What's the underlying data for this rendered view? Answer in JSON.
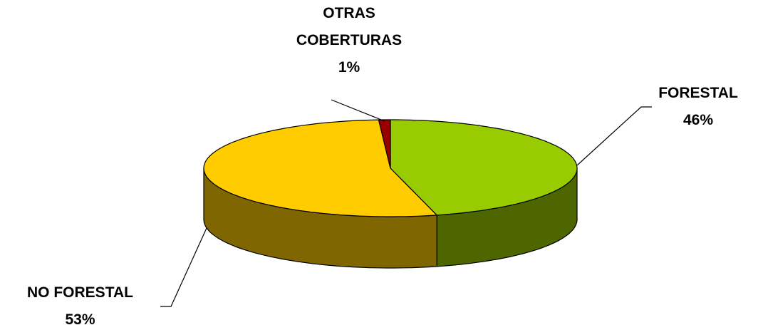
{
  "chart_data": {
    "type": "pie",
    "categories": [
      "FORESTAL",
      "NO FORESTAL",
      "OTRAS COBERTURAS"
    ],
    "values": [
      46,
      53,
      1
    ],
    "value_labels": [
      "46%",
      "53%",
      "1%"
    ],
    "colors": [
      "#99cc00",
      "#ffcc00",
      "#990000"
    ]
  }
}
